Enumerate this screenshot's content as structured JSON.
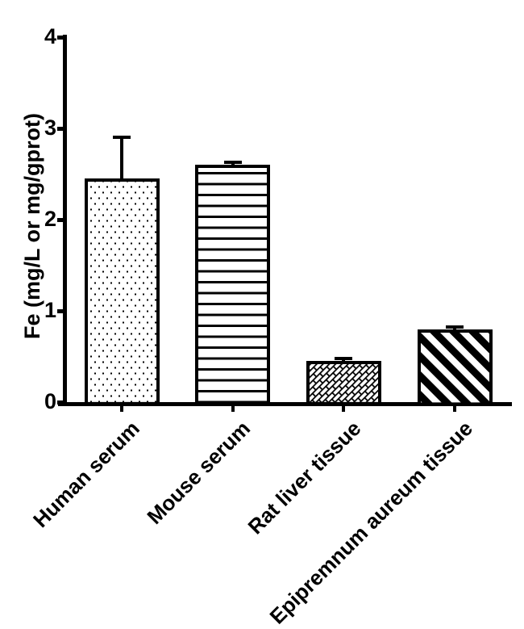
{
  "figure": {
    "background_color": "#ffffff",
    "ink_color": "#000000"
  },
  "chart_data": {
    "type": "bar",
    "title": "",
    "categories": [
      "Human serum",
      "Mouse serum",
      "Rat liver tissue",
      "Epipremnum aureum tissue"
    ],
    "values": [
      2.45,
      2.6,
      0.45,
      0.8
    ],
    "errors_plus": [
      0.45,
      0.03,
      0.03,
      0.02
    ],
    "xlabel": "",
    "ylabel": "Fe (mg/L or mg/gprot)",
    "ylim": [
      0,
      4
    ],
    "yticks": [
      0,
      1,
      2,
      3,
      4
    ],
    "ytick_labels": [
      "0",
      "1",
      "2",
      "3",
      "4"
    ],
    "grid": false,
    "legend": null,
    "bar_fill": "#ffffff",
    "bar_outline": "#000000",
    "bar_patterns": [
      "dots",
      "horizontal-lines",
      "diagonal-bricks",
      "diagonal-stripes"
    ],
    "tick_direction": "out",
    "x_label_rotation_deg": -45
  }
}
